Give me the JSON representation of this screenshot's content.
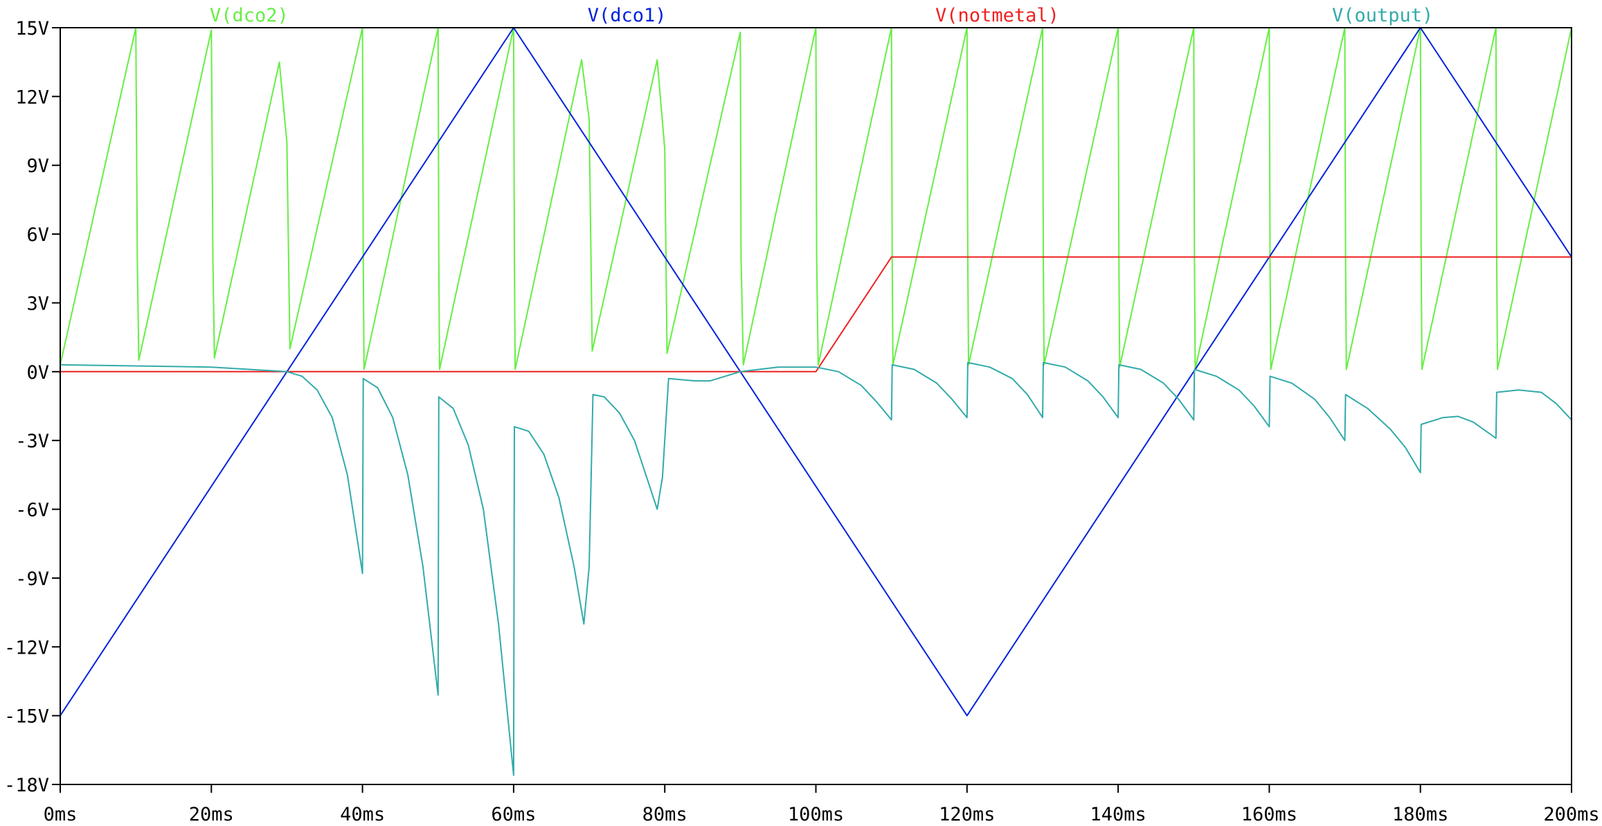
{
  "chart_data": {
    "type": "line",
    "title": "",
    "xlabel": "",
    "ylabel": "",
    "xlim": [
      0,
      200
    ],
    "ylim": [
      -18,
      15
    ],
    "grid": false,
    "legend_placement": "top",
    "x_ticks": [
      0,
      20,
      40,
      60,
      80,
      100,
      120,
      140,
      160,
      180,
      200
    ],
    "x_tick_labels": [
      "0ms",
      "20ms",
      "40ms",
      "60ms",
      "80ms",
      "100ms",
      "120ms",
      "140ms",
      "160ms",
      "180ms",
      "200ms"
    ],
    "y_ticks": [
      15,
      12,
      9,
      6,
      3,
      0,
      -3,
      -6,
      -9,
      -12,
      -15,
      -18
    ],
    "y_tick_labels": [
      "15V",
      "12V",
      "9V",
      "6V",
      "3V",
      "0V",
      "-3V",
      "-6V",
      "-9V",
      "-12V",
      "-15V",
      "-18V"
    ],
    "series": [
      {
        "name": "V(dco2)",
        "color": "#66ee44",
        "legend_x": 25,
        "points": [
          [
            0,
            0.3
          ],
          [
            10,
            15
          ],
          [
            10.2,
            5
          ],
          [
            10.4,
            0.5
          ],
          [
            20,
            14.9
          ],
          [
            20.2,
            5
          ],
          [
            20.4,
            0.6
          ],
          [
            29,
            13.5
          ],
          [
            30,
            10
          ],
          [
            30.4,
            1
          ],
          [
            40,
            15
          ],
          [
            40.1,
            5
          ],
          [
            40.2,
            0.1
          ],
          [
            50,
            15
          ],
          [
            50.1,
            5
          ],
          [
            50.2,
            0.1
          ],
          [
            60,
            15
          ],
          [
            60.1,
            5
          ],
          [
            60.2,
            0.1
          ],
          [
            69,
            13.6
          ],
          [
            70,
            11
          ],
          [
            70.4,
            0.9
          ],
          [
            79,
            13.6
          ],
          [
            80,
            9.7
          ],
          [
            80.3,
            0.8
          ],
          [
            90,
            14.8
          ],
          [
            90.1,
            5
          ],
          [
            90.4,
            0.3
          ],
          [
            100,
            15
          ],
          [
            100.1,
            5
          ],
          [
            100.3,
            0.3
          ],
          [
            110,
            15
          ],
          [
            110.1,
            5
          ],
          [
            110.2,
            0.3
          ],
          [
            120,
            15
          ],
          [
            120.1,
            5
          ],
          [
            120.2,
            0.3
          ],
          [
            130,
            15
          ],
          [
            130.1,
            5
          ],
          [
            130.2,
            0.3
          ],
          [
            140,
            15
          ],
          [
            140.1,
            5
          ],
          [
            140.2,
            0.2
          ],
          [
            150,
            15
          ],
          [
            150.1,
            5
          ],
          [
            150.2,
            0.1
          ],
          [
            160,
            15
          ],
          [
            160.1,
            5
          ],
          [
            160.2,
            0.1
          ],
          [
            170,
            15
          ],
          [
            170.1,
            5
          ],
          [
            170.2,
            0.1
          ],
          [
            180,
            15
          ],
          [
            180.1,
            5
          ],
          [
            180.2,
            0.1
          ],
          [
            190,
            15
          ],
          [
            190.1,
            5
          ],
          [
            190.2,
            0.1
          ],
          [
            200,
            15
          ]
        ]
      },
      {
        "name": "V(dco1)",
        "color": "#0022dd",
        "legend_x": 75,
        "points": [
          [
            0,
            -15
          ],
          [
            60,
            15
          ],
          [
            120,
            -15
          ],
          [
            180,
            15
          ],
          [
            200,
            5
          ]
        ]
      },
      {
        "name": "V(notmetal)",
        "color": "#ee2222",
        "legend_x": 124,
        "points": [
          [
            0,
            0
          ],
          [
            100,
            0
          ],
          [
            110,
            5
          ],
          [
            200,
            5
          ]
        ]
      },
      {
        "name": "V(output)",
        "color": "#33aaaa",
        "legend_x": 175,
        "points": [
          [
            0,
            0.3
          ],
          [
            10,
            0.25
          ],
          [
            20,
            0.2
          ],
          [
            25,
            0.1
          ],
          [
            30,
            0
          ],
          [
            32,
            -0.2
          ],
          [
            34,
            -0.8
          ],
          [
            36,
            -2
          ],
          [
            38,
            -4.5
          ],
          [
            40,
            -8.8
          ],
          [
            40.1,
            -0.3
          ],
          [
            42,
            -0.7
          ],
          [
            44,
            -2
          ],
          [
            46,
            -4.5
          ],
          [
            48,
            -8.5
          ],
          [
            50,
            -14.1
          ],
          [
            50.1,
            -1.1
          ],
          [
            52,
            -1.6
          ],
          [
            54,
            -3.2
          ],
          [
            56,
            -6
          ],
          [
            58,
            -11
          ],
          [
            60,
            -17.6
          ],
          [
            60.1,
            -2.4
          ],
          [
            62,
            -2.6
          ],
          [
            64,
            -3.6
          ],
          [
            66,
            -5.5
          ],
          [
            68,
            -8.5
          ],
          [
            69.3,
            -11
          ],
          [
            70,
            -8.5
          ],
          [
            70.5,
            -1
          ],
          [
            72,
            -1.1
          ],
          [
            74,
            -1.8
          ],
          [
            76,
            -3
          ],
          [
            78,
            -5
          ],
          [
            79,
            -6
          ],
          [
            79.7,
            -4.6
          ],
          [
            80.5,
            -0.3
          ],
          [
            84,
            -0.4
          ],
          [
            86,
            -0.4
          ],
          [
            88,
            -0.2
          ],
          [
            90,
            0
          ],
          [
            95,
            0.2
          ],
          [
            100,
            0.2
          ],
          [
            103,
            0
          ],
          [
            106,
            -0.6
          ],
          [
            108,
            -1.3
          ],
          [
            110,
            -2.1
          ],
          [
            110.1,
            0.3
          ],
          [
            113,
            0.1
          ],
          [
            116,
            -0.5
          ],
          [
            118,
            -1.2
          ],
          [
            120,
            -2
          ],
          [
            120.1,
            0.4
          ],
          [
            123,
            0.2
          ],
          [
            126,
            -0.3
          ],
          [
            128,
            -1
          ],
          [
            130,
            -2
          ],
          [
            130.1,
            0.4
          ],
          [
            133,
            0.2
          ],
          [
            136,
            -0.4
          ],
          [
            138,
            -1.1
          ],
          [
            140,
            -2
          ],
          [
            140.1,
            0.3
          ],
          [
            143,
            0.1
          ],
          [
            146,
            -0.5
          ],
          [
            148,
            -1.2
          ],
          [
            150,
            -2.1
          ],
          [
            150.1,
            0.1
          ],
          [
            153,
            -0.2
          ],
          [
            156,
            -0.8
          ],
          [
            158,
            -1.5
          ],
          [
            160,
            -2.4
          ],
          [
            160.1,
            -0.2
          ],
          [
            163,
            -0.5
          ],
          [
            166,
            -1.2
          ],
          [
            168,
            -2
          ],
          [
            170,
            -3
          ],
          [
            170.1,
            -1
          ],
          [
            173,
            -1.6
          ],
          [
            176,
            -2.5
          ],
          [
            178,
            -3.3
          ],
          [
            180,
            -4.4
          ],
          [
            180.1,
            -2.3
          ],
          [
            183,
            -2
          ],
          [
            185,
            -1.95
          ],
          [
            187,
            -2.2
          ],
          [
            190,
            -2.9
          ],
          [
            190.1,
            -0.9
          ],
          [
            193,
            -0.8
          ],
          [
            196,
            -0.9
          ],
          [
            198,
            -1.4
          ],
          [
            200,
            -2.1
          ]
        ]
      }
    ]
  }
}
